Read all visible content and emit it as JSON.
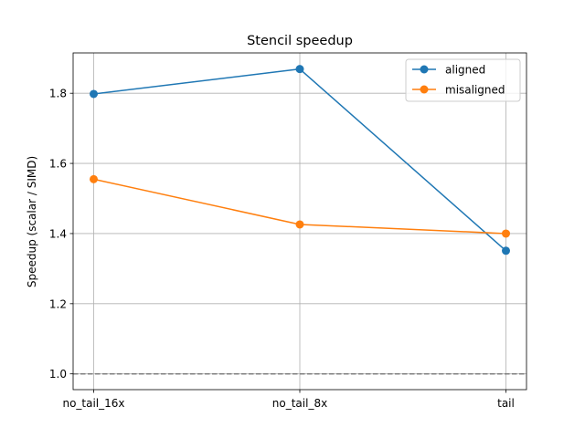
{
  "chart_data": {
    "type": "line",
    "title": "Stencil speedup",
    "xlabel": "",
    "ylabel": "Speedup (scalar / SIMD)",
    "categories": [
      "no_tail_16x",
      "no_tail_8x",
      "tail"
    ],
    "ylim": [
      0.955,
      1.915
    ],
    "yticks": [
      1.0,
      1.2,
      1.4,
      1.6,
      1.8
    ],
    "ytick_labels": [
      "1.0",
      "1.2",
      "1.4",
      "1.6",
      "1.8"
    ],
    "grid": true,
    "legend_position": "top-right",
    "reference_line": {
      "y": 1.0,
      "style": "dashed",
      "color": "#808080"
    },
    "series": [
      {
        "name": "aligned",
        "color": "#1f77b4",
        "marker": "circle",
        "values": [
          1.798,
          1.869,
          1.351
        ]
      },
      {
        "name": "misaligned",
        "color": "#ff7f0e",
        "marker": "circle",
        "values": [
          1.555,
          1.426,
          1.4
        ]
      }
    ]
  }
}
